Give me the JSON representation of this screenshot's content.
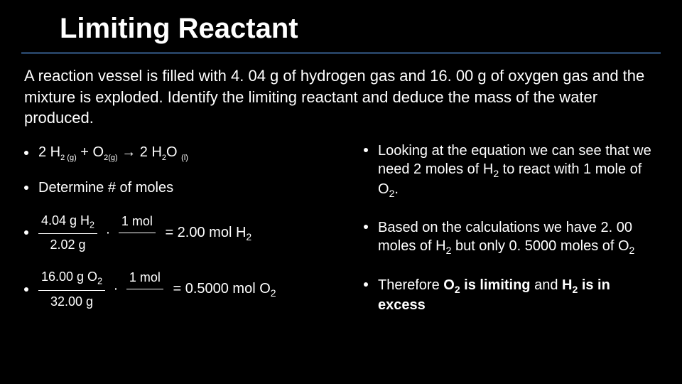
{
  "title": "Limiting Reactant",
  "problem": "A reaction vessel is filled with 4. 04 g of hydrogen gas and 16. 00 g of oxygen gas and the mixture is exploded. Identify the limiting reactant and deduce the mass of the water produced.",
  "left": {
    "eq_lhs_a": "2 H",
    "eq_lhs_a_sub": "2 (g)",
    "eq_plus": " + O",
    "eq_o_sub": "2(g)",
    "eq_arrow": " →   2 H",
    "eq_rhs_sub1": "2",
    "eq_rhs_o": "O ",
    "eq_rhs_sub2": "(l)",
    "det_label": "Determine # of moles",
    "calc1_num1": "4.04 g H",
    "calc1_num1_sub": "2",
    "calc1_den1": "2.02 g",
    "calc1_num2": "1 mol",
    "calc1_res": "= 2.00 mol H",
    "calc1_res_sub": "2",
    "calc2_num1": "16.00 g O",
    "calc2_num1_sub": "2",
    "calc2_den1": "32.00 g",
    "calc2_num2": "1 mol",
    "calc2_res": "= 0.5000 mol O",
    "calc2_res_sub": "2"
  },
  "right": {
    "p1_a": "Looking at the equation we can see that we need 2 moles of H",
    "p1_sub1": "2",
    "p1_b": " to react with 1 mole of O",
    "p1_sub2": "2",
    "p1_c": ".",
    "p2_a": "Based on the calculations we have 2. 00 moles of H",
    "p2_sub1": "2",
    "p2_b": " but only 0. 5000 moles of O",
    "p2_sub2": "2",
    "p3_a": "Therefore ",
    "p3_b": "O",
    "p3_sub1": "2",
    "p3_c": " is limiting",
    "p3_d": " and ",
    "p3_e": "H",
    "p3_sub2": "2",
    "p3_f": " is in excess"
  },
  "colors": {
    "background": "#000000",
    "text": "#ffffff",
    "divider": "#254061"
  }
}
